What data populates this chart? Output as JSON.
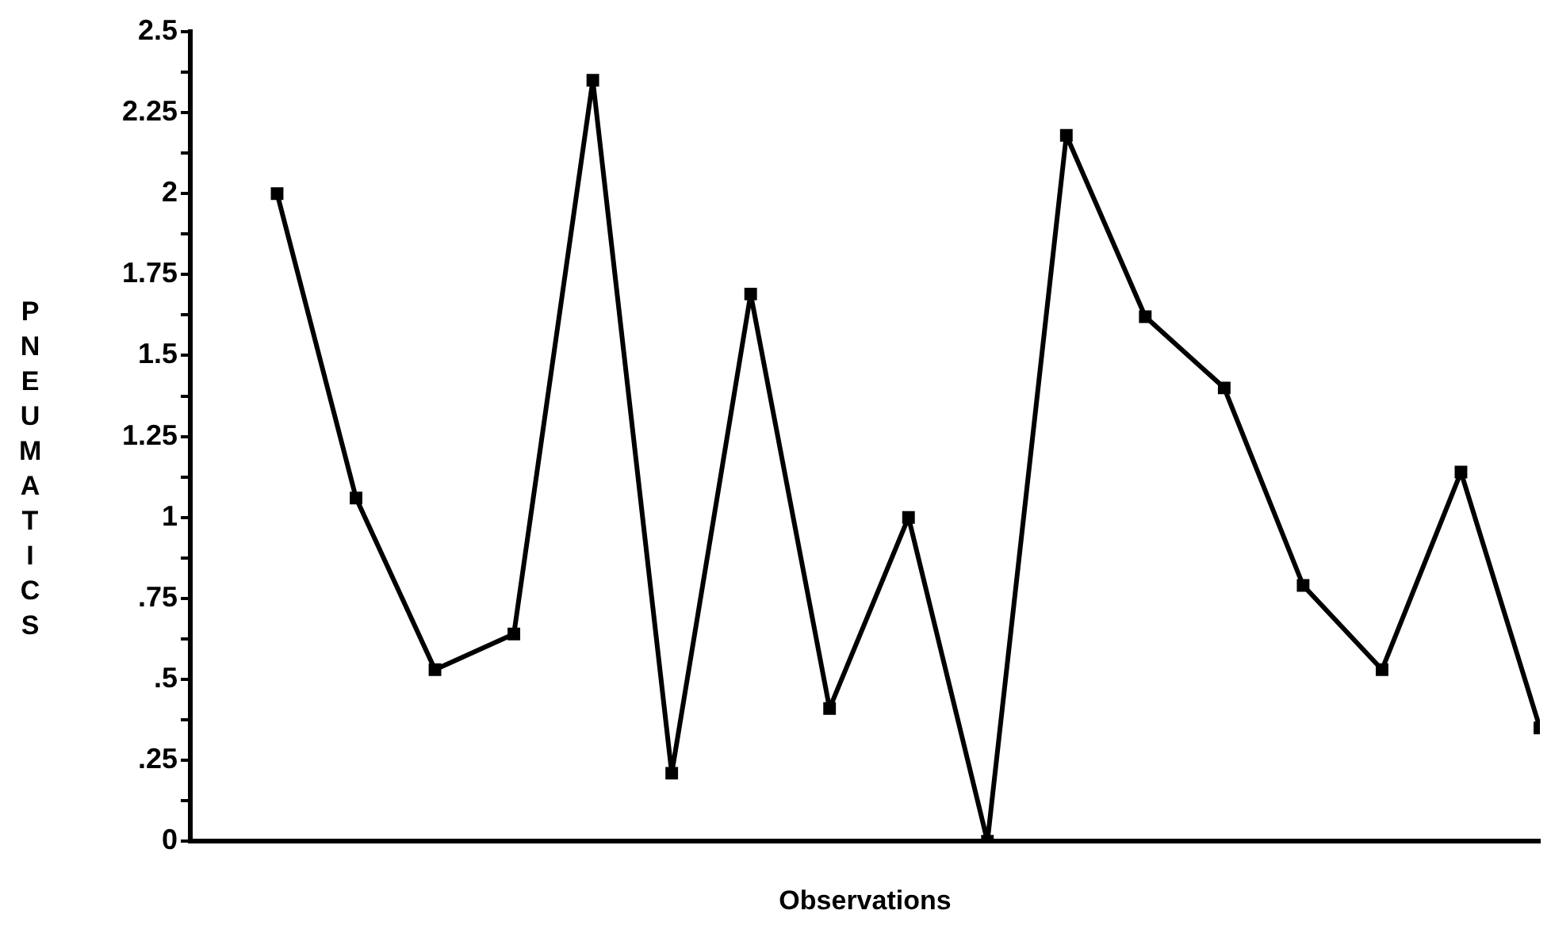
{
  "chart_data": {
    "type": "line",
    "xlabel": "Observations",
    "ylabel": "PNEUMATICS",
    "categories": [
      null,
      null,
      null,
      null,
      null,
      null,
      null,
      null,
      null,
      null,
      null,
      null,
      null,
      null,
      null,
      null,
      null
    ],
    "series": [
      {
        "color": "#000000",
        "values": [
          2.0,
          1.06,
          0.53,
          0.64,
          2.35,
          0.21,
          1.69,
          0.41,
          1.0,
          0,
          2.18,
          1.62,
          1.4,
          0.79,
          0.53,
          1.14,
          0.35
        ]
      }
    ],
    "ylim": [
      0,
      2.5
    ],
    "yticks": [
      {
        "value": 0,
        "label": "0"
      },
      {
        "value": 0.125,
        "label": null
      },
      {
        "value": 0.25,
        "label": ".25"
      },
      {
        "value": 0.375,
        "label": null
      },
      {
        "value": 0.5,
        "label": ".5"
      },
      {
        "value": 0.625,
        "label": null
      },
      {
        "value": 0.75,
        "label": ".75"
      },
      {
        "value": 0.875,
        "label": null
      },
      {
        "value": 1,
        "label": "1"
      },
      {
        "value": 1.125,
        "label": null
      },
      {
        "value": 1.25,
        "label": "1.25"
      },
      {
        "value": 1.375,
        "label": null
      },
      {
        "value": 1.5,
        "label": "1.5"
      },
      {
        "value": 1.625,
        "label": null
      },
      {
        "value": 1.75,
        "label": "1.75"
      },
      {
        "value": 1.875,
        "label": null
      },
      {
        "value": 2,
        "label": "2"
      },
      {
        "value": 2.125,
        "label": null
      },
      {
        "value": 2.25,
        "label": "2.25"
      },
      {
        "value": 2.375,
        "label": null
      },
      {
        "value": 2.5,
        "label": "2.5"
      }
    ],
    "tick_labels": "y",
    "grid": false,
    "legend": false,
    "marker": "square",
    "line_style": "solid"
  }
}
